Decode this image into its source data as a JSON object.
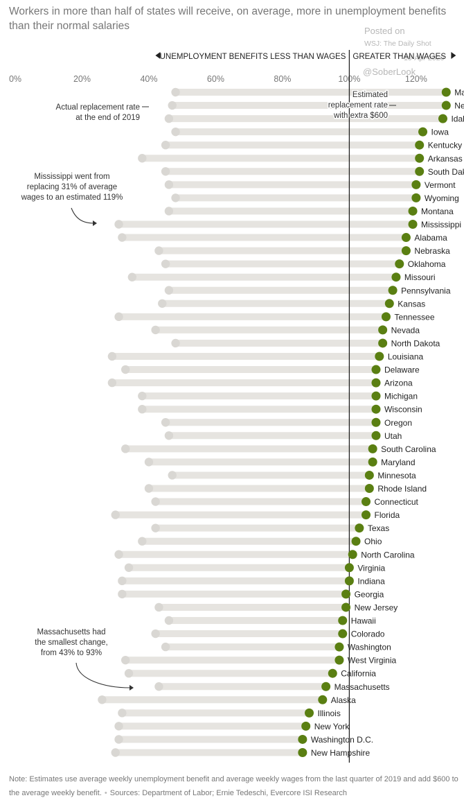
{
  "title": "Workers in more than half of states will receive, on average, more in unemployment benefits than their normal salaries",
  "watermark": {
    "posted": "Posted on",
    "source": "WSJ: The Daily Shot",
    "date": "10-Apr-2020",
    "handle": "@SoberLook"
  },
  "note": {
    "text": "Note: Estimates use average weekly unemployment benefit and average weekly wages from the last quarter of 2019 and add $600 to the average weekly benefit.",
    "sources": "Sources: Department of Labor; Ernie Tedeschi, Evercore ISI Research"
  },
  "colors": {
    "track": "#e6e4e0",
    "old": "#d9d7d3",
    "new": "#5a7f12",
    "axis": "#222222"
  },
  "chart_data": {
    "type": "dot",
    "xlim": [
      0,
      125
    ],
    "x_ticks": [
      "0%",
      "20%",
      "40%",
      "60%",
      "80%",
      "100%",
      "120%"
    ],
    "x_tick_values": [
      0,
      20,
      40,
      60,
      80,
      100,
      120
    ],
    "header_left": "UNEMPLOYMENT BENEFITS LESS THAN WAGES",
    "header_right": "GREATER THAN WAGES",
    "annotations": [
      {
        "lines": [
          "Actual replacement rate",
          "at the end of 2019"
        ]
      },
      {
        "lines": [
          "Estimated",
          "replacement rate",
          "with extra $600"
        ]
      },
      {
        "lines": [
          "Mississippi went from",
          "replacing 31% of average",
          "wages to an estimated 119%"
        ]
      },
      {
        "lines": [
          "Massachusetts had",
          "the smallest change,",
          "from 43% to 93%"
        ]
      }
    ],
    "series": [
      {
        "name": "Actual replacement rate at the end of 2019",
        "key": "actual"
      },
      {
        "name": "Estimated replacement rate with extra $600",
        "key": "estimated"
      }
    ],
    "rows": [
      {
        "state": "Maine",
        "actual": 48,
        "estimated": 129
      },
      {
        "state": "New Mexico",
        "actual": 47,
        "estimated": 129
      },
      {
        "state": "Idaho",
        "actual": 46,
        "estimated": 128
      },
      {
        "state": "Iowa",
        "actual": 48,
        "estimated": 122
      },
      {
        "state": "Kentucky",
        "actual": 45,
        "estimated": 121
      },
      {
        "state": "Arkansas",
        "actual": 38,
        "estimated": 121
      },
      {
        "state": "South Dakota",
        "actual": 45,
        "estimated": 121
      },
      {
        "state": "Vermont",
        "actual": 46,
        "estimated": 120
      },
      {
        "state": "Wyoming",
        "actual": 48,
        "estimated": 120
      },
      {
        "state": "Montana",
        "actual": 46,
        "estimated": 119
      },
      {
        "state": "Mississippi",
        "actual": 31,
        "estimated": 119
      },
      {
        "state": "Alabama",
        "actual": 32,
        "estimated": 117
      },
      {
        "state": "Nebraska",
        "actual": 43,
        "estimated": 117
      },
      {
        "state": "Oklahoma",
        "actual": 45,
        "estimated": 115
      },
      {
        "state": "Missouri",
        "actual": 35,
        "estimated": 114
      },
      {
        "state": "Pennsylvania",
        "actual": 46,
        "estimated": 113
      },
      {
        "state": "Kansas",
        "actual": 44,
        "estimated": 112
      },
      {
        "state": "Tennessee",
        "actual": 31,
        "estimated": 111
      },
      {
        "state": "Nevada",
        "actual": 42,
        "estimated": 110
      },
      {
        "state": "North Dakota",
        "actual": 48,
        "estimated": 110
      },
      {
        "state": "Louisiana",
        "actual": 29,
        "estimated": 109
      },
      {
        "state": "Delaware",
        "actual": 33,
        "estimated": 108
      },
      {
        "state": "Arizona",
        "actual": 29,
        "estimated": 108
      },
      {
        "state": "Michigan",
        "actual": 38,
        "estimated": 108
      },
      {
        "state": "Wisconsin",
        "actual": 38,
        "estimated": 108
      },
      {
        "state": "Oregon",
        "actual": 45,
        "estimated": 108
      },
      {
        "state": "Utah",
        "actual": 46,
        "estimated": 108
      },
      {
        "state": "South Carolina",
        "actual": 33,
        "estimated": 107
      },
      {
        "state": "Maryland",
        "actual": 40,
        "estimated": 107
      },
      {
        "state": "Minnesota",
        "actual": 47,
        "estimated": 106
      },
      {
        "state": "Rhode Island",
        "actual": 40,
        "estimated": 106
      },
      {
        "state": "Connecticut",
        "actual": 42,
        "estimated": 105
      },
      {
        "state": "Florida",
        "actual": 30,
        "estimated": 105
      },
      {
        "state": "Texas",
        "actual": 42,
        "estimated": 103
      },
      {
        "state": "Ohio",
        "actual": 38,
        "estimated": 102
      },
      {
        "state": "North Carolina",
        "actual": 31,
        "estimated": 101
      },
      {
        "state": "Virginia",
        "actual": 34,
        "estimated": 100
      },
      {
        "state": "Indiana",
        "actual": 32,
        "estimated": 100
      },
      {
        "state": "Georgia",
        "actual": 32,
        "estimated": 99
      },
      {
        "state": "New Jersey",
        "actual": 43,
        "estimated": 99
      },
      {
        "state": "Hawaii",
        "actual": 46,
        "estimated": 98
      },
      {
        "state": "Colorado",
        "actual": 42,
        "estimated": 98
      },
      {
        "state": "Washington",
        "actual": 45,
        "estimated": 97
      },
      {
        "state": "West Virginia",
        "actual": 33,
        "estimated": 97
      },
      {
        "state": "California",
        "actual": 34,
        "estimated": 95
      },
      {
        "state": "Massachusetts",
        "actual": 43,
        "estimated": 93
      },
      {
        "state": "Alaska",
        "actual": 26,
        "estimated": 92
      },
      {
        "state": "Illinois",
        "actual": 32,
        "estimated": 88
      },
      {
        "state": "New York",
        "actual": 31,
        "estimated": 87
      },
      {
        "state": "Washington D.C.",
        "actual": 31,
        "estimated": 86
      },
      {
        "state": "New Hampshire",
        "actual": 30,
        "estimated": 86
      }
    ]
  }
}
